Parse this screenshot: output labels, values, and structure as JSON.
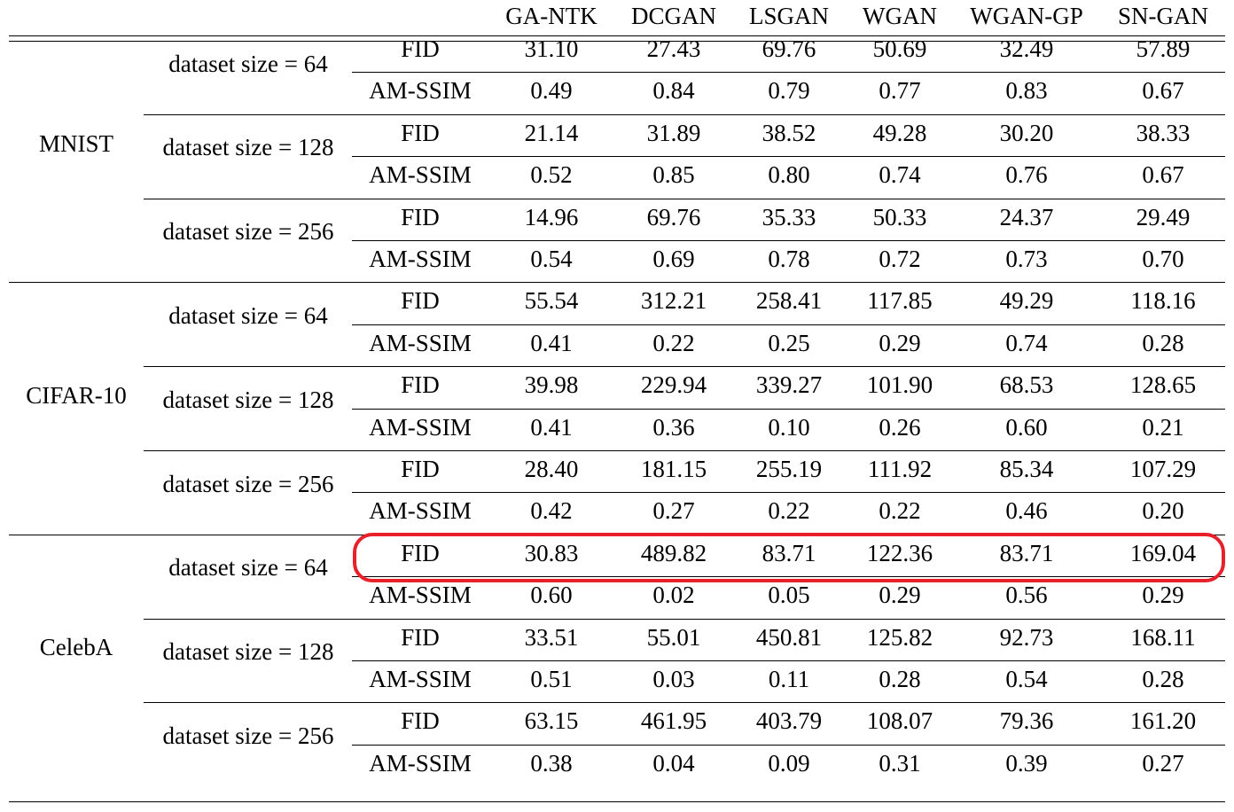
{
  "table": {
    "columns": [
      "GA-NTK",
      "DCGAN",
      "LSGAN",
      "WGAN",
      "WGAN-GP",
      "SN-GAN"
    ],
    "datasets": [
      {
        "name": "MNIST",
        "groups": [
          {
            "label": "dataset size = 64",
            "rows": [
              {
                "metric": "FID",
                "values": [
                  "31.10",
                  "27.43",
                  "69.76",
                  "50.69",
                  "32.49",
                  "57.89"
                ]
              },
              {
                "metric": "AM-SSIM",
                "values": [
                  "0.49",
                  "0.84",
                  "0.79",
                  "0.77",
                  "0.83",
                  "0.67"
                ]
              }
            ]
          },
          {
            "label": "dataset size = 128",
            "rows": [
              {
                "metric": "FID",
                "values": [
                  "21.14",
                  "31.89",
                  "38.52",
                  "49.28",
                  "30.20",
                  "38.33"
                ]
              },
              {
                "metric": "AM-SSIM",
                "values": [
                  "0.52",
                  "0.85",
                  "0.80",
                  "0.74",
                  "0.76",
                  "0.67"
                ]
              }
            ]
          },
          {
            "label": "dataset size = 256",
            "rows": [
              {
                "metric": "FID",
                "values": [
                  "14.96",
                  "69.76",
                  "35.33",
                  "50.33",
                  "24.37",
                  "29.49"
                ]
              },
              {
                "metric": "AM-SSIM",
                "values": [
                  "0.54",
                  "0.69",
                  "0.78",
                  "0.72",
                  "0.73",
                  "0.70"
                ]
              }
            ]
          }
        ]
      },
      {
        "name": "CIFAR-10",
        "groups": [
          {
            "label": "dataset size = 64",
            "rows": [
              {
                "metric": "FID",
                "values": [
                  "55.54",
                  "312.21",
                  "258.41",
                  "117.85",
                  "49.29",
                  "118.16"
                ]
              },
              {
                "metric": "AM-SSIM",
                "values": [
                  "0.41",
                  "0.22",
                  "0.25",
                  "0.29",
                  "0.74",
                  "0.28"
                ]
              }
            ]
          },
          {
            "label": "dataset size = 128",
            "rows": [
              {
                "metric": "FID",
                "values": [
                  "39.98",
                  "229.94",
                  "339.27",
                  "101.90",
                  "68.53",
                  "128.65"
                ]
              },
              {
                "metric": "AM-SSIM",
                "values": [
                  "0.41",
                  "0.36",
                  "0.10",
                  "0.26",
                  "0.60",
                  "0.21"
                ]
              }
            ]
          },
          {
            "label": "dataset size = 256",
            "rows": [
              {
                "metric": "FID",
                "values": [
                  "28.40",
                  "181.15",
                  "255.19",
                  "111.92",
                  "85.34",
                  "107.29"
                ]
              },
              {
                "metric": "AM-SSIM",
                "values": [
                  "0.42",
                  "0.27",
                  "0.22",
                  "0.22",
                  "0.46",
                  "0.20"
                ]
              }
            ]
          }
        ]
      },
      {
        "name": "CelebA",
        "groups": [
          {
            "label": "dataset size = 64",
            "rows": [
              {
                "metric": "FID",
                "values": [
                  "30.83",
                  "489.82",
                  "83.71",
                  "122.36",
                  "83.71",
                  "169.04"
                ]
              },
              {
                "metric": "AM-SSIM",
                "values": [
                  "0.60",
                  "0.02",
                  "0.05",
                  "0.29",
                  "0.56",
                  "0.29"
                ]
              }
            ]
          },
          {
            "label": "dataset size = 128",
            "rows": [
              {
                "metric": "FID",
                "values": [
                  "33.51",
                  "55.01",
                  "450.81",
                  "125.82",
                  "92.73",
                  "168.11"
                ]
              },
              {
                "metric": "AM-SSIM",
                "values": [
                  "0.51",
                  "0.03",
                  "0.11",
                  "0.28",
                  "0.54",
                  "0.28"
                ]
              }
            ]
          },
          {
            "label": "dataset size = 256",
            "rows": [
              {
                "metric": "FID",
                "values": [
                  "63.15",
                  "461.95",
                  "403.79",
                  "108.07",
                  "79.36",
                  "161.20"
                ]
              },
              {
                "metric": "AM-SSIM",
                "values": [
                  "0.38",
                  "0.04",
                  "0.09",
                  "0.31",
                  "0.39",
                  "0.27"
                ]
              }
            ]
          }
        ]
      }
    ]
  },
  "highlight": {
    "dataset_index": 2,
    "group_index": 0,
    "row_index": 0,
    "color": "#e8202a"
  }
}
